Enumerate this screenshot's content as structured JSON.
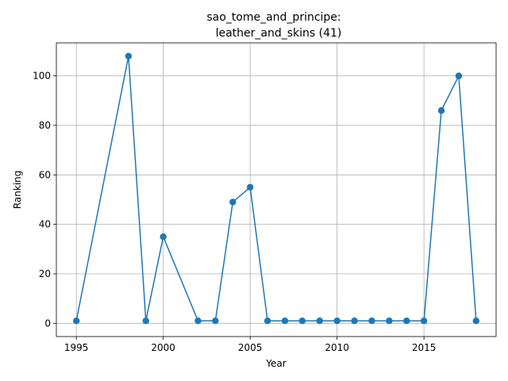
{
  "chart_data": {
    "type": "line",
    "title_line1": "sao_tome_and_principe:",
    "title_line2": "leather_and_skins (41)",
    "xlabel": "Year",
    "ylabel": "Ranking",
    "xlim": [
      1994.15,
      1998.85
    ],
    "ylim": [
      -5.35,
      113.35
    ],
    "xticks": [
      1995,
      2000,
      2005,
      2010,
      2015
    ],
    "yticks": [
      0,
      20,
      40,
      60,
      80,
      100
    ],
    "grid": true,
    "color": "#1f77b4",
    "series": [
      {
        "x": [
          1995,
          1998,
          1999,
          2000,
          2002,
          2003,
          2004,
          2005,
          2006,
          2007,
          2008,
          2009,
          2010,
          2011,
          2012,
          2013,
          2014,
          2015,
          2016,
          2017,
          2018
        ],
        "values": [
          1,
          108,
          1,
          35,
          1,
          1,
          49,
          55,
          1,
          1,
          1,
          1,
          1,
          1,
          1,
          1,
          1,
          1,
          86,
          100,
          1
        ]
      }
    ]
  }
}
